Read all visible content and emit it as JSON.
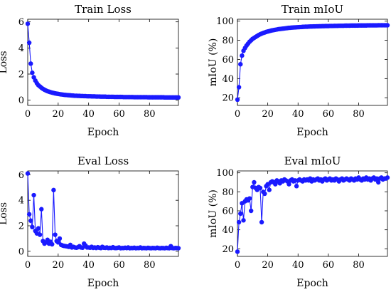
{
  "panels": [
    {
      "title": "Train Loss",
      "xlabel": "Epoch",
      "ylabel": "Loss",
      "x_ticks": [
        0,
        20,
        40,
        60,
        80
      ],
      "y_ticks": [
        0,
        2,
        4,
        6
      ]
    },
    {
      "title": "Train mIoU",
      "xlabel": "Epoch",
      "ylabel": "mIoU (%)",
      "x_ticks": [
        0,
        20,
        40,
        60,
        80
      ],
      "y_ticks": [
        20,
        40,
        60,
        80,
        100
      ]
    },
    {
      "title": "Eval Loss",
      "xlabel": "Epoch",
      "ylabel": "Loss",
      "x_ticks": [
        0,
        20,
        40,
        60,
        80
      ],
      "y_ticks": [
        0,
        2,
        4,
        6
      ]
    },
    {
      "title": "Eval mIoU",
      "xlabel": "Epoch",
      "ylabel": "mIoU (%)",
      "x_ticks": [
        0,
        20,
        40,
        60,
        80
      ],
      "y_ticks": [
        20,
        40,
        60,
        80,
        100
      ]
    }
  ],
  "colors": {
    "series": "#1a1aff",
    "axis": "#000000"
  },
  "chart_data": [
    {
      "type": "line",
      "title": "Train Loss",
      "xlabel": "Epoch",
      "ylabel": "Loss",
      "xlim": [
        0,
        99
      ],
      "ylim": [
        -0.4,
        6.2
      ],
      "grid": false,
      "legend": "none",
      "x": [
        0,
        1,
        2,
        3,
        4,
        5,
        6,
        7,
        8,
        9,
        10,
        11,
        12,
        13,
        14,
        15,
        16,
        17,
        18,
        19,
        20,
        21,
        22,
        23,
        24,
        25,
        26,
        27,
        28,
        29,
        30,
        31,
        32,
        33,
        34,
        35,
        36,
        37,
        38,
        39,
        40,
        41,
        42,
        43,
        44,
        45,
        46,
        47,
        48,
        49,
        50,
        51,
        52,
        53,
        54,
        55,
        56,
        57,
        58,
        59,
        60,
        61,
        62,
        63,
        64,
        65,
        66,
        67,
        68,
        69,
        70,
        71,
        72,
        73,
        74,
        75,
        76,
        77,
        78,
        79,
        80,
        81,
        82,
        83,
        84,
        85,
        86,
        87,
        88,
        89,
        90,
        91,
        92,
        93,
        94,
        95,
        96,
        97,
        98,
        99
      ],
      "series": [
        {
          "values": [
            5.85,
            4.4,
            2.8,
            2.1,
            1.75,
            1.5,
            1.3,
            1.15,
            1.05,
            0.95,
            0.87,
            0.8,
            0.74,
            0.69,
            0.65,
            0.61,
            0.58,
            0.55,
            0.52,
            0.5,
            0.48,
            0.46,
            0.44,
            0.43,
            0.41,
            0.4,
            0.39,
            0.38,
            0.37,
            0.36,
            0.35,
            0.34,
            0.34,
            0.33,
            0.33,
            0.32,
            0.32,
            0.31,
            0.31,
            0.3,
            0.3,
            0.3,
            0.29,
            0.29,
            0.29,
            0.28,
            0.28,
            0.28,
            0.27,
            0.27,
            0.27,
            0.27,
            0.26,
            0.26,
            0.26,
            0.26,
            0.26,
            0.25,
            0.25,
            0.25,
            0.25,
            0.25,
            0.25,
            0.24,
            0.24,
            0.24,
            0.24,
            0.24,
            0.24,
            0.24,
            0.23,
            0.23,
            0.23,
            0.23,
            0.23,
            0.23,
            0.23,
            0.23,
            0.23,
            0.22,
            0.22,
            0.22,
            0.22,
            0.22,
            0.22,
            0.22,
            0.22,
            0.22,
            0.22,
            0.22,
            0.21,
            0.21,
            0.21,
            0.21,
            0.21,
            0.21,
            0.21,
            0.21,
            0.21,
            0.21
          ]
        }
      ]
    },
    {
      "type": "line",
      "title": "Train mIoU",
      "xlabel": "Epoch",
      "ylabel": "mIoU (%)",
      "xlim": [
        0,
        99
      ],
      "ylim": [
        12,
        102
      ],
      "grid": false,
      "legend": "none",
      "x": [
        0,
        1,
        2,
        3,
        4,
        5,
        6,
        7,
        8,
        9,
        10,
        11,
        12,
        13,
        14,
        15,
        16,
        17,
        18,
        19,
        20,
        21,
        22,
        23,
        24,
        25,
        26,
        27,
        28,
        29,
        30,
        31,
        32,
        33,
        34,
        35,
        36,
        37,
        38,
        39,
        40,
        41,
        42,
        43,
        44,
        45,
        46,
        47,
        48,
        49,
        50,
        51,
        52,
        53,
        54,
        55,
        56,
        57,
        58,
        59,
        60,
        61,
        62,
        63,
        64,
        65,
        66,
        67,
        68,
        69,
        70,
        71,
        72,
        73,
        74,
        75,
        76,
        77,
        78,
        79,
        80,
        81,
        82,
        83,
        84,
        85,
        86,
        87,
        88,
        89,
        90,
        91,
        92,
        93,
        94,
        95,
        96,
        97,
        98,
        99
      ],
      "series": [
        {
          "values": [
            18,
            31,
            55,
            64,
            69,
            72,
            74.5,
            76.5,
            78.5,
            80,
            81.5,
            82.5,
            83.5,
            84.5,
            85.5,
            86.3,
            87,
            87.6,
            88.2,
            88.7,
            89.2,
            89.6,
            90,
            90.4,
            90.7,
            91,
            91.3,
            91.6,
            91.8,
            92,
            92.2,
            92.4,
            92.6,
            92.8,
            93,
            93.1,
            93.3,
            93.4,
            93.5,
            93.6,
            93.7,
            93.8,
            93.9,
            94,
            94.1,
            94.2,
            94.2,
            94.3,
            94.4,
            94.4,
            94.5,
            94.5,
            94.6,
            94.6,
            94.7,
            94.7,
            94.8,
            94.8,
            94.9,
            94.9,
            94.9,
            95,
            95,
            95,
            95.1,
            95.1,
            95.1,
            95.2,
            95.2,
            95.2,
            95.2,
            95.3,
            95.3,
            95.3,
            95.3,
            95.4,
            95.4,
            95.4,
            95.4,
            95.4,
            95.5,
            95.5,
            95.5,
            95.5,
            95.5,
            95.5,
            95.6,
            95.6,
            95.6,
            95.6,
            95.6,
            95.6,
            95.6,
            95.7,
            95.7,
            95.7,
            95.7,
            95.7,
            95.7,
            95.7
          ]
        }
      ]
    },
    {
      "type": "line",
      "title": "Eval Loss",
      "xlabel": "Epoch",
      "ylabel": "Loss",
      "xlim": [
        0,
        99
      ],
      "ylim": [
        -0.4,
        6.3
      ],
      "grid": false,
      "legend": "none",
      "x": [
        0,
        1,
        2,
        3,
        4,
        5,
        6,
        7,
        8,
        9,
        10,
        11,
        12,
        13,
        14,
        15,
        16,
        17,
        18,
        19,
        20,
        21,
        22,
        23,
        24,
        25,
        26,
        27,
        28,
        29,
        30,
        31,
        32,
        33,
        34,
        35,
        36,
        37,
        38,
        39,
        40,
        41,
        42,
        43,
        44,
        45,
        46,
        47,
        48,
        49,
        50,
        51,
        52,
        53,
        54,
        55,
        56,
        57,
        58,
        59,
        60,
        61,
        62,
        63,
        64,
        65,
        66,
        67,
        68,
        69,
        70,
        71,
        72,
        73,
        74,
        75,
        76,
        77,
        78,
        79,
        80,
        81,
        82,
        83,
        84,
        85,
        86,
        87,
        88,
        89,
        90,
        91,
        92,
        93,
        94,
        95,
        96,
        97,
        98,
        99
      ],
      "series": [
        {
          "values": [
            6.1,
            2.9,
            2.4,
            1.9,
            4.4,
            1.6,
            1.4,
            1.8,
            1.3,
            3.3,
            0.8,
            0.6,
            0.7,
            0.9,
            0.6,
            0.75,
            0.55,
            4.8,
            1.3,
            0.8,
            0.7,
            1.0,
            0.5,
            0.45,
            0.42,
            0.4,
            0.38,
            0.35,
            0.5,
            0.3,
            0.35,
            0.3,
            0.28,
            0.32,
            0.4,
            0.3,
            0.28,
            0.6,
            0.45,
            0.3,
            0.3,
            0.28,
            0.35,
            0.27,
            0.3,
            0.26,
            0.32,
            0.28,
            0.25,
            0.35,
            0.28,
            0.27,
            0.3,
            0.25,
            0.27,
            0.26,
            0.32,
            0.26,
            0.25,
            0.27,
            0.3,
            0.24,
            0.26,
            0.25,
            0.28,
            0.25,
            0.3,
            0.24,
            0.26,
            0.25,
            0.28,
            0.24,
            0.26,
            0.25,
            0.3,
            0.24,
            0.26,
            0.25,
            0.24,
            0.27,
            0.25,
            0.24,
            0.26,
            0.25,
            0.24,
            0.28,
            0.25,
            0.24,
            0.26,
            0.25,
            0.24,
            0.27,
            0.25,
            0.24,
            0.4,
            0.25,
            0.24,
            0.26,
            0.25,
            0.24
          ]
        }
      ]
    },
    {
      "type": "line",
      "title": "Eval mIoU",
      "xlabel": "Epoch",
      "ylabel": "mIoU (%)",
      "xlim": [
        0,
        99
      ],
      "ylim": [
        12,
        102
      ],
      "grid": false,
      "legend": "none",
      "x": [
        0,
        1,
        2,
        3,
        4,
        5,
        6,
        7,
        8,
        9,
        10,
        11,
        12,
        13,
        14,
        15,
        16,
        17,
        18,
        19,
        20,
        21,
        22,
        23,
        24,
        25,
        26,
        27,
        28,
        29,
        30,
        31,
        32,
        33,
        34,
        35,
        36,
        37,
        38,
        39,
        40,
        41,
        42,
        43,
        44,
        45,
        46,
        47,
        48,
        49,
        50,
        51,
        52,
        53,
        54,
        55,
        56,
        57,
        58,
        59,
        60,
        61,
        62,
        63,
        64,
        65,
        66,
        67,
        68,
        69,
        70,
        71,
        72,
        73,
        74,
        75,
        76,
        77,
        78,
        79,
        80,
        81,
        82,
        83,
        84,
        85,
        86,
        87,
        88,
        89,
        90,
        91,
        92,
        93,
        94,
        95,
        96,
        97,
        98,
        99
      ],
      "series": [
        {
          "values": [
            17,
            48,
            57,
            68,
            50,
            70,
            72,
            71,
            73,
            60,
            85,
            90,
            84,
            82,
            85,
            84,
            48,
            80,
            78,
            86,
            88,
            82,
            90,
            91,
            90,
            88,
            92,
            91,
            89,
            92,
            91,
            93,
            92,
            91,
            88,
            92,
            93,
            91,
            92,
            86,
            92,
            93,
            92,
            91,
            93,
            92,
            93,
            92,
            94,
            91,
            93,
            92,
            93,
            94,
            92,
            93,
            91,
            93,
            94,
            92,
            93,
            94,
            92,
            93,
            92,
            94,
            93,
            91,
            93,
            94,
            92,
            93,
            94,
            93,
            92,
            94,
            93,
            92,
            94,
            93,
            95,
            93,
            92,
            94,
            93,
            95,
            93,
            94,
            92,
            94,
            95,
            93,
            94,
            90,
            94,
            95,
            93,
            94,
            94,
            95
          ]
        }
      ]
    }
  ]
}
